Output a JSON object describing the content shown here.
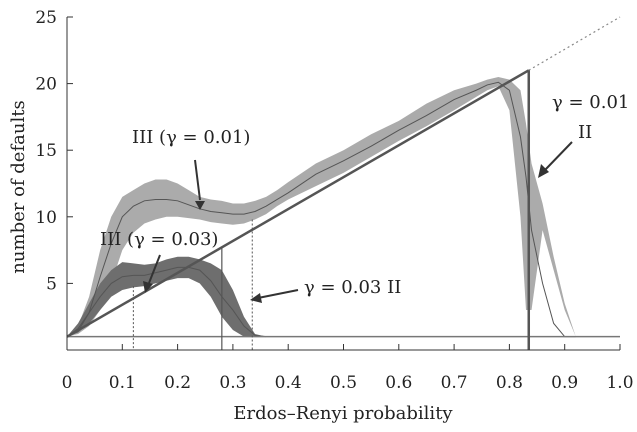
{
  "chart_data": {
    "type": "area",
    "xlabel": "Erdos–Renyi probability",
    "ylabel": "number of defaults",
    "xlim": [
      0,
      1.0
    ],
    "ylim": [
      0,
      25
    ],
    "x_ticks": [
      0,
      0.1,
      0.2,
      0.3,
      0.4,
      0.5,
      0.6,
      0.7,
      0.8,
      0.9,
      1.0
    ],
    "x_tick_labels": [
      "0",
      "0.1",
      "0.2",
      "0.3",
      "0.4",
      "0.5",
      "0.6",
      "0.7",
      "0.8",
      "0.9",
      "1.0"
    ],
    "y_ticks": [
      5,
      10,
      15,
      20,
      25
    ],
    "y_tick_labels": [
      "5",
      "10",
      "15",
      "20",
      "25"
    ],
    "grid": false,
    "colors": {
      "band_light": "#ababab",
      "band_dark": "#6e6e6e",
      "line_mid": "#555555",
      "theory": "#555555",
      "baseline": "#777777"
    },
    "bands": [
      {
        "gamma": 0.01,
        "x": [
          0.0,
          0.02,
          0.04,
          0.06,
          0.08,
          0.1,
          0.12,
          0.14,
          0.16,
          0.18,
          0.2,
          0.22,
          0.24,
          0.26,
          0.28,
          0.3,
          0.32,
          0.34,
          0.36,
          0.38,
          0.4,
          0.45,
          0.5,
          0.55,
          0.6,
          0.65,
          0.7,
          0.74,
          0.76,
          0.78,
          0.8,
          0.82,
          0.83,
          0.84,
          0.86,
          0.88,
          0.9,
          0.92
        ],
        "lower": [
          1.0,
          1.2,
          1.8,
          3.0,
          5.0,
          7.5,
          8.8,
          9.5,
          9.8,
          10.0,
          10.0,
          9.9,
          9.8,
          9.6,
          9.5,
          9.4,
          9.5,
          9.8,
          10.2,
          10.8,
          11.3,
          12.3,
          13.3,
          14.5,
          15.7,
          16.8,
          18.0,
          19.0,
          19.5,
          19.8,
          18.0,
          10.0,
          3.0,
          3.0,
          9.0,
          6.0,
          3.0,
          1.0
        ],
        "upper": [
          1.0,
          1.8,
          4.0,
          7.5,
          10.0,
          11.5,
          12.0,
          12.5,
          12.8,
          12.8,
          12.5,
          12.0,
          11.5,
          11.3,
          11.2,
          11.0,
          11.0,
          11.2,
          11.5,
          12.0,
          12.6,
          14.0,
          15.0,
          16.2,
          17.2,
          18.5,
          19.5,
          20.0,
          20.3,
          20.5,
          20.3,
          19.5,
          17.0,
          14.0,
          11.0,
          7.0,
          3.5,
          1.0
        ],
        "mid": [
          1.0,
          1.4,
          2.8,
          5.5,
          8.0,
          10.0,
          10.8,
          11.2,
          11.3,
          11.3,
          11.2,
          10.9,
          10.6,
          10.4,
          10.3,
          10.2,
          10.2,
          10.4,
          10.8,
          11.3,
          11.8,
          13.2,
          14.2,
          15.3,
          16.5,
          17.6,
          18.8,
          19.5,
          19.9,
          20.1,
          19.5,
          16.0,
          13.0,
          9.0,
          5.0,
          2.0,
          1.0,
          1.0
        ]
      },
      {
        "gamma": 0.03,
        "x": [
          0.0,
          0.02,
          0.04,
          0.06,
          0.08,
          0.1,
          0.12,
          0.14,
          0.16,
          0.18,
          0.2,
          0.22,
          0.24,
          0.26,
          0.28,
          0.3,
          0.32,
          0.34,
          0.36
        ],
        "lower": [
          1.0,
          1.3,
          2.0,
          3.0,
          4.0,
          4.5,
          4.7,
          4.8,
          5.0,
          5.2,
          5.4,
          5.4,
          5.0,
          4.0,
          2.5,
          1.5,
          1.0,
          1.0,
          1.0
        ],
        "upper": [
          1.0,
          2.0,
          3.5,
          5.0,
          6.0,
          6.6,
          6.5,
          6.4,
          6.5,
          6.8,
          7.0,
          7.0,
          6.8,
          6.5,
          6.0,
          4.5,
          2.5,
          1.2,
          1.0
        ],
        "mid": [
          1.0,
          1.6,
          2.8,
          4.0,
          5.0,
          5.5,
          5.6,
          5.6,
          5.8,
          6.0,
          6.2,
          6.2,
          6.0,
          5.2,
          4.0,
          3.0,
          1.8,
          1.1,
          1.0
        ]
      }
    ],
    "theory": {
      "x": [
        0.0,
        0.835
      ],
      "y": [
        1.0,
        21.0
      ],
      "dotted_to": [
        1.0,
        25.0
      ],
      "baseline_y": 1.0,
      "vertical_drops": [
        {
          "x": 0.835,
          "y_top": 21.0,
          "style": "solid"
        },
        {
          "x": 0.28,
          "y_top": 7.7,
          "style": "solid"
        },
        {
          "x": 0.12,
          "y_top": 4.8,
          "style": "dotted"
        },
        {
          "x": 0.335,
          "y_top": 9.8,
          "style": "dotted"
        }
      ]
    },
    "annotations": [
      {
        "text": "III (γ = 0.01)",
        "point_to": [
          0.245,
          10.6
        ]
      },
      {
        "text": "III (γ = 0.03)",
        "point_to": [
          0.165,
          5.5
        ]
      },
      {
        "text": "γ = 0.03 II",
        "point_to": [
          0.26,
          4.1
        ]
      },
      {
        "text": "γ = 0.01",
        "point_to": null
      },
      {
        "text": "II",
        "point_to": [
          0.845,
          13.0
        ]
      }
    ]
  }
}
